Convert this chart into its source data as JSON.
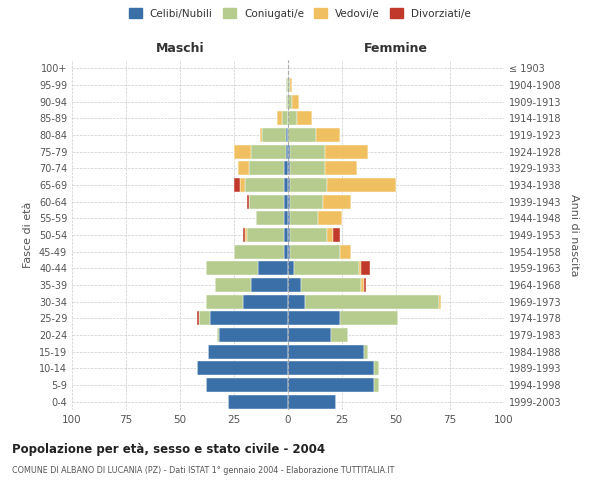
{
  "age_groups": [
    "0-4",
    "5-9",
    "10-14",
    "15-19",
    "20-24",
    "25-29",
    "30-34",
    "35-39",
    "40-44",
    "45-49",
    "50-54",
    "55-59",
    "60-64",
    "65-69",
    "70-74",
    "75-79",
    "80-84",
    "85-89",
    "90-94",
    "95-99",
    "100+"
  ],
  "birth_years": [
    "1999-2003",
    "1994-1998",
    "1989-1993",
    "1984-1988",
    "1979-1983",
    "1974-1978",
    "1969-1973",
    "1964-1968",
    "1959-1963",
    "1954-1958",
    "1949-1953",
    "1944-1948",
    "1939-1943",
    "1934-1938",
    "1929-1933",
    "1924-1928",
    "1919-1923",
    "1914-1918",
    "1909-1913",
    "1904-1908",
    "≤ 1903"
  ],
  "male": {
    "celibi": [
      28,
      38,
      42,
      37,
      32,
      36,
      21,
      17,
      14,
      2,
      2,
      2,
      2,
      2,
      2,
      1,
      1,
      0,
      0,
      0,
      0
    ],
    "coniugati": [
      0,
      0,
      0,
      0,
      1,
      5,
      17,
      17,
      24,
      23,
      17,
      13,
      16,
      18,
      16,
      16,
      11,
      3,
      1,
      1,
      0
    ],
    "vedovi": [
      0,
      0,
      0,
      0,
      0,
      0,
      0,
      0,
      0,
      0,
      1,
      0,
      0,
      2,
      5,
      8,
      1,
      2,
      0,
      0,
      0
    ],
    "divorziati": [
      0,
      0,
      0,
      0,
      0,
      1,
      0,
      0,
      0,
      0,
      1,
      0,
      1,
      3,
      0,
      0,
      0,
      0,
      0,
      0,
      0
    ]
  },
  "female": {
    "nubili": [
      22,
      40,
      40,
      35,
      20,
      24,
      8,
      6,
      3,
      1,
      1,
      1,
      1,
      1,
      1,
      1,
      0,
      0,
      0,
      0,
      0
    ],
    "coniugate": [
      0,
      2,
      2,
      2,
      8,
      27,
      62,
      28,
      30,
      23,
      17,
      13,
      15,
      17,
      16,
      16,
      13,
      4,
      2,
      1,
      0
    ],
    "vedove": [
      0,
      0,
      0,
      0,
      0,
      0,
      1,
      1,
      1,
      5,
      3,
      11,
      13,
      32,
      15,
      20,
      11,
      7,
      3,
      1,
      0
    ],
    "divorziate": [
      0,
      0,
      0,
      0,
      0,
      0,
      0,
      1,
      4,
      0,
      3,
      0,
      0,
      0,
      0,
      0,
      0,
      0,
      0,
      0,
      0
    ]
  },
  "colors": {
    "celibi": "#3a6fa8",
    "coniugati": "#b5cc8e",
    "vedovi": "#f0c060",
    "divorziati": "#c0392b"
  },
  "title": "Popolazione per età, sesso e stato civile - 2004",
  "subtitle": "COMUNE DI ALBANO DI LUCANIA (PZ) - Dati ISTAT 1° gennaio 2004 - Elaborazione TUTTITALIA.IT",
  "xlabel_left": "Maschi",
  "xlabel_right": "Femmine",
  "ylabel_left": "Fasce di età",
  "ylabel_right": "Anni di nascita",
  "xlim": 100,
  "bg_color": "#ffffff",
  "grid_color": "#cccccc",
  "legend_labels": [
    "Celibi/Nubili",
    "Coniugati/e",
    "Vedovi/e",
    "Divorziati/e"
  ]
}
